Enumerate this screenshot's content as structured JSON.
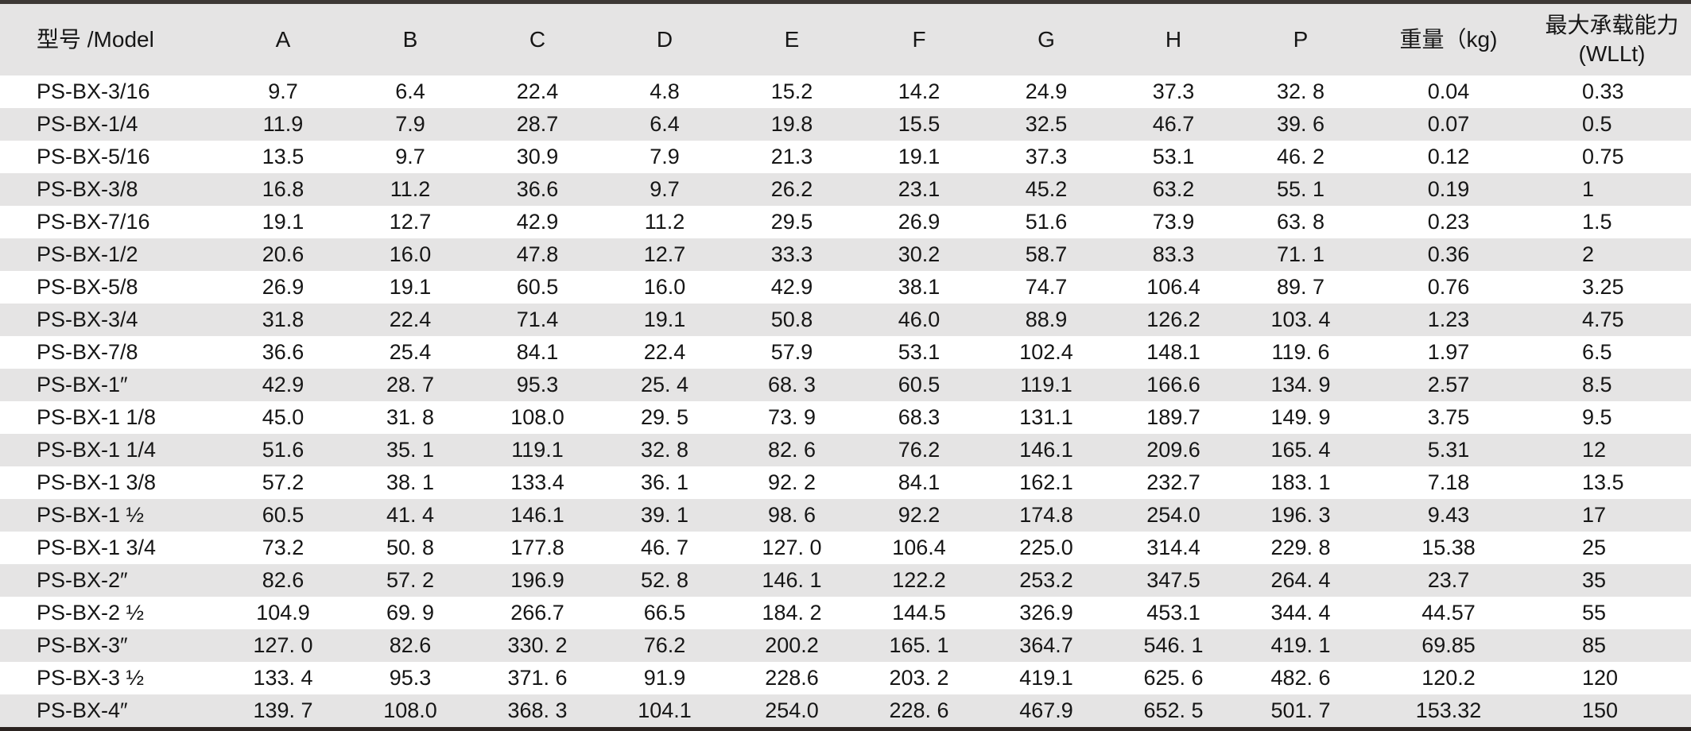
{
  "table": {
    "columns": [
      {
        "id": "model",
        "label": "型号 /Model"
      },
      {
        "id": "A",
        "label": "A"
      },
      {
        "id": "B",
        "label": "B"
      },
      {
        "id": "C",
        "label": "C"
      },
      {
        "id": "D",
        "label": "D"
      },
      {
        "id": "E",
        "label": "E"
      },
      {
        "id": "F",
        "label": "F"
      },
      {
        "id": "G",
        "label": "G"
      },
      {
        "id": "H",
        "label": "H"
      },
      {
        "id": "P",
        "label": "P"
      },
      {
        "id": "weight",
        "label": "重量（kg)"
      },
      {
        "id": "wll",
        "label": "最大承载能力",
        "label2": "(WLLt)"
      }
    ],
    "rows": [
      [
        "PS-BX-3/16",
        "9.7",
        "6.4",
        "22.4",
        "4.8",
        "15.2",
        "14.2",
        "24.9",
        "37.3",
        "32. 8",
        "0.04",
        "0.33"
      ],
      [
        "PS-BX-1/4",
        "11.9",
        "7.9",
        "28.7",
        "6.4",
        "19.8",
        "15.5",
        "32.5",
        "46.7",
        "39. 6",
        "0.07",
        "0.5"
      ],
      [
        "PS-BX-5/16",
        "13.5",
        "9.7",
        "30.9",
        "7.9",
        "21.3",
        "19.1",
        "37.3",
        "53.1",
        "46. 2",
        "0.12",
        "0.75"
      ],
      [
        "PS-BX-3/8",
        "16.8",
        "11.2",
        "36.6",
        "9.7",
        "26.2",
        "23.1",
        "45.2",
        "63.2",
        "55. 1",
        "0.19",
        "1"
      ],
      [
        "PS-BX-7/16",
        "19.1",
        "12.7",
        "42.9",
        "11.2",
        "29.5",
        "26.9",
        "51.6",
        "73.9",
        "63. 8",
        "0.23",
        "1.5"
      ],
      [
        "PS-BX-1/2",
        "20.6",
        "16.0",
        "47.8",
        "12.7",
        "33.3",
        "30.2",
        "58.7",
        "83.3",
        "71. 1",
        "0.36",
        "2"
      ],
      [
        "PS-BX-5/8",
        "26.9",
        "19.1",
        "60.5",
        "16.0",
        "42.9",
        "38.1",
        "74.7",
        "106.4",
        "89. 7",
        "0.76",
        "3.25"
      ],
      [
        "PS-BX-3/4",
        "31.8",
        "22.4",
        "71.4",
        "19.1",
        "50.8",
        "46.0",
        "88.9",
        "126.2",
        "103. 4",
        "1.23",
        "4.75"
      ],
      [
        "PS-BX-7/8",
        "36.6",
        "25.4",
        "84.1",
        "22.4",
        "57.9",
        "53.1",
        "102.4",
        "148.1",
        "119. 6",
        "1.97",
        "6.5"
      ],
      [
        "PS-BX-1″",
        "42.9",
        "28. 7",
        "95.3",
        "25. 4",
        "68. 3",
        "60.5",
        "119.1",
        "166.6",
        "134. 9",
        "2.57",
        "8.5"
      ],
      [
        "PS-BX-1 1/8",
        "45.0",
        "31. 8",
        "108.0",
        "29. 5",
        "73. 9",
        "68.3",
        "131.1",
        "189.7",
        "149. 9",
        "3.75",
        "9.5"
      ],
      [
        "PS-BX-1 1/4",
        "51.6",
        "35. 1",
        "119.1",
        "32. 8",
        "82. 6",
        "76.2",
        "146.1",
        "209.6",
        "165. 4",
        "5.31",
        "12"
      ],
      [
        "PS-BX-1 3/8",
        "57.2",
        "38. 1",
        "133.4",
        "36. 1",
        "92. 2",
        "84.1",
        "162.1",
        "232.7",
        "183. 1",
        "7.18",
        "13.5"
      ],
      [
        "PS-BX-1 ½",
        "60.5",
        "41. 4",
        "146.1",
        "39. 1",
        "98. 6",
        "92.2",
        "174.8",
        "254.0",
        "196. 3",
        "9.43",
        "17"
      ],
      [
        "PS-BX-1 3/4",
        "73.2",
        "50. 8",
        "177.8",
        "46. 7",
        "127. 0",
        "106.4",
        "225.0",
        "314.4",
        "229. 8",
        "15.38",
        "25"
      ],
      [
        "PS-BX-2″",
        "82.6",
        "57. 2",
        "196.9",
        "52. 8",
        "146. 1",
        "122.2",
        "253.2",
        "347.5",
        "264. 4",
        "23.7",
        "35"
      ],
      [
        "PS-BX-2 ½",
        "104.9",
        "69. 9",
        "266.7",
        "66.5",
        "184. 2",
        "144.5",
        "326.9",
        "453.1",
        "344. 4",
        "44.57",
        "55"
      ],
      [
        "PS-BX-3″",
        "127. 0",
        "82.6",
        "330. 2",
        "76.2",
        "200.2",
        "165. 1",
        "364.7",
        "546. 1",
        "419. 1",
        "69.85",
        "85"
      ],
      [
        "PS-BX-3 ½",
        "133. 4",
        "95.3",
        "371. 6",
        "91.9",
        "228.6",
        "203. 2",
        "419.1",
        "625. 6",
        "482. 6",
        "120.2",
        "120"
      ],
      [
        "PS-BX-4″",
        "139. 7",
        "108.0",
        "368. 3",
        "104.1",
        "254.0",
        "228. 6",
        "467.9",
        "652. 5",
        "501. 7",
        "153.32",
        "150"
      ]
    ]
  },
  "colors": {
    "header_bg": "#e5e4e4",
    "row_alt": "#e5e4e4",
    "border_top": "#3d3835",
    "border_bottom": "#2b2320",
    "text": "#161616"
  }
}
